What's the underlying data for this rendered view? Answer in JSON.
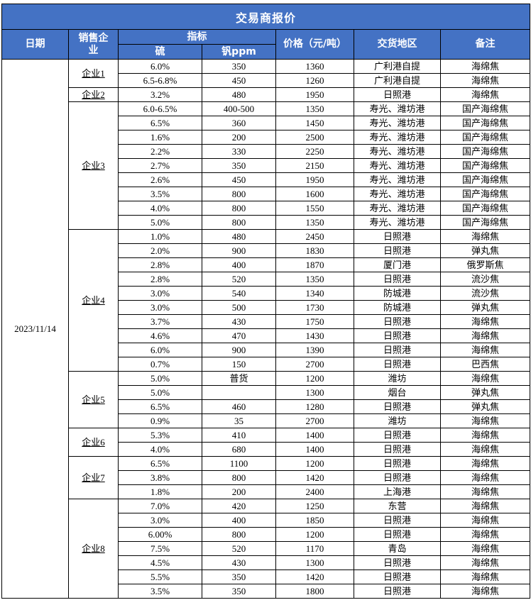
{
  "title": "交易商报价",
  "date_value": "2023/11/14",
  "colors": {
    "header_bg": "#4472C4",
    "header_text": "#FFFFFF",
    "body_text": "#000000",
    "border": "#000000",
    "background": "#FFFFFF"
  },
  "header": {
    "date": "日期",
    "company": "销售企业",
    "indicator": "指标",
    "sulfur": "硫",
    "vanadium": "钒ppm",
    "price": "价格（元/吨）",
    "delivery": "交货地区",
    "remark": "备注"
  },
  "groups": [
    {
      "company": "企业1",
      "rows": [
        [
          "6.0%",
          "350",
          "1360",
          "广利港自提",
          "海绵焦"
        ],
        [
          "6.5-6.8%",
          "450",
          "1260",
          "广利港自提",
          "海绵焦"
        ]
      ]
    },
    {
      "company": "企业2",
      "rows": [
        [
          "3.2%",
          "480",
          "1950",
          "日照港",
          "海绵焦"
        ]
      ]
    },
    {
      "company": "企业3",
      "rows": [
        [
          "6.0-6.5%",
          "400-500",
          "1350",
          "寿光、潍坊港",
          "国产海绵焦"
        ],
        [
          "6.5%",
          "360",
          "1450",
          "寿光、潍坊港",
          "国产海绵焦"
        ],
        [
          "1.6%",
          "200",
          "2500",
          "寿光、潍坊港",
          "国产海绵焦"
        ],
        [
          "2.2%",
          "330",
          "2250",
          "寿光、潍坊港",
          "国产海绵焦"
        ],
        [
          "2.7%",
          "350",
          "2150",
          "寿光、潍坊港",
          "国产海绵焦"
        ],
        [
          "2.6%",
          "450",
          "1950",
          "寿光、潍坊港",
          "国产海绵焦"
        ],
        [
          "3.5%",
          "800",
          "1600",
          "寿光、潍坊港",
          "国产海绵焦"
        ],
        [
          "4.0%",
          "800",
          "1550",
          "寿光、潍坊港",
          "国产海绵焦"
        ],
        [
          "5.0%",
          "800",
          "1350",
          "寿光、潍坊港",
          "国产海绵焦"
        ]
      ]
    },
    {
      "company": "企业4",
      "rows": [
        [
          "1.0%",
          "480",
          "2450",
          "日照港",
          "海绵焦"
        ],
        [
          "2.0%",
          "900",
          "1830",
          "日照港",
          "弹丸焦"
        ],
        [
          "2.8%",
          "400",
          "1870",
          "厦门港",
          "俄罗斯焦"
        ],
        [
          "2.8%",
          "520",
          "1350",
          "日照港",
          "流沙焦"
        ],
        [
          "3.0%",
          "540",
          "1340",
          "防城港",
          "流沙焦"
        ],
        [
          "3.0%",
          "500",
          "1730",
          "防城港",
          "弹丸焦"
        ],
        [
          "3.7%",
          "430",
          "1750",
          "日照港",
          "海绵焦"
        ],
        [
          "4.6%",
          "470",
          "1430",
          "日照港",
          "海绵焦"
        ],
        [
          "6.0%",
          "900",
          "1390",
          "日照港",
          "海绵焦"
        ],
        [
          "0.7%",
          "150",
          "2700",
          "日照港",
          "巴西焦"
        ]
      ]
    },
    {
      "company": "企业5",
      "rows": [
        [
          "5.0%",
          "普货",
          "1200",
          "潍坊",
          "海绵焦"
        ],
        [
          "5.0%",
          "",
          "1300",
          "烟台",
          "弹丸焦"
        ],
        [
          "6.5%",
          "460",
          "1280",
          "日照港",
          "弹丸焦"
        ],
        [
          "0.9%",
          "35",
          "2700",
          "潍坊",
          "海绵焦"
        ]
      ]
    },
    {
      "company": "企业6",
      "rows": [
        [
          "5.3%",
          "410",
          "1400",
          "日照港",
          "海绵焦"
        ],
        [
          "4.0%",
          "680",
          "1400",
          "日照港",
          "海绵焦"
        ]
      ]
    },
    {
      "company": "企业7",
      "rows": [
        [
          "6.5%",
          "1100",
          "1200",
          "日照港",
          "海绵焦"
        ],
        [
          "3.8%",
          "800",
          "1420",
          "日照港",
          "海绵焦"
        ],
        [
          "1.8%",
          "200",
          "2400",
          "上海港",
          "海绵焦"
        ]
      ]
    },
    {
      "company": "企业8",
      "rows": [
        [
          "7.0%",
          "420",
          "1250",
          "东营",
          "海绵焦"
        ],
        [
          "3.0%",
          "400",
          "1850",
          "日照港",
          "海绵焦"
        ],
        [
          "6.00%",
          "800",
          "1200",
          "日照港",
          "海绵焦"
        ],
        [
          "7.5%",
          "520",
          "1170",
          "青岛",
          "海绵焦"
        ],
        [
          "4.5%",
          "430",
          "1300",
          "日照港",
          "海绵焦"
        ],
        [
          "5.5%",
          "350",
          "1420",
          "日照港",
          "海绵焦"
        ],
        [
          "3.5%",
          "350",
          "1800",
          "日照港",
          "海绵焦"
        ]
      ]
    }
  ]
}
